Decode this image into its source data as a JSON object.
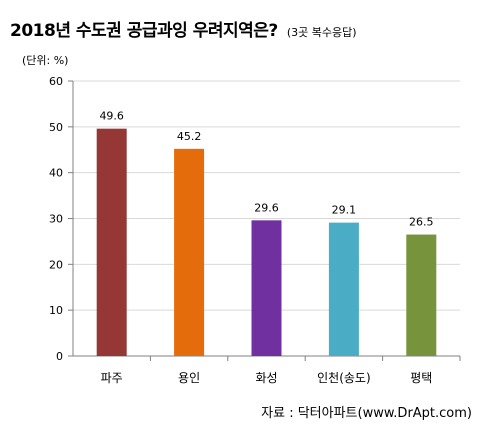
{
  "header": {
    "title": "2018년 수도권 공급과잉 우려지역은?",
    "subtitle": "(3곳 복수응답)"
  },
  "unit_label": "(단위: %)",
  "source": "자료 : 닥터아파트(www.DrApt.com)",
  "colors": {
    "bars": [
      "#953735",
      "#e46c0a",
      "#7030a0",
      "#4bacc6",
      "#77933c"
    ],
    "grid": "#d9d9d9",
    "axis": "#808080"
  },
  "chart_data": {
    "type": "bar",
    "categories": [
      "파주",
      "용인",
      "화성",
      "인천(송도)",
      "평택"
    ],
    "values": [
      49.6,
      45.2,
      29.6,
      29.1,
      26.5
    ],
    "value_labels": [
      "49.6",
      "45.2",
      "29.6",
      "29.1",
      "26.5"
    ],
    "title": "2018년 수도권 공급과잉 우려지역은?",
    "xlabel": "",
    "ylabel": "",
    "ylim": [
      0,
      60
    ],
    "yticks": [
      0,
      10,
      20,
      30,
      40,
      50,
      60
    ],
    "grid": true,
    "legend": "none"
  }
}
